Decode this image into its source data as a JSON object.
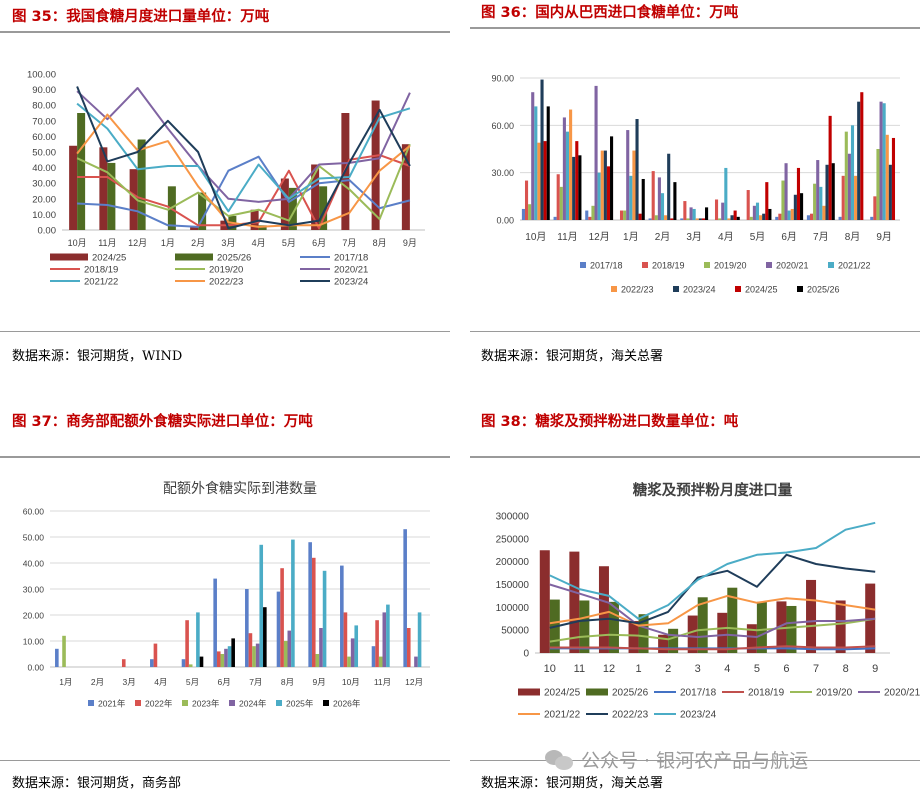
{
  "figures": {
    "fig35": {
      "title": "图 35：我国食糖月度进口量单位：万吨",
      "source": "数据来源：银河期货，WIND"
    },
    "fig36": {
      "title": "图 36：国内从巴西进口食糖单位：万吨",
      "source": "数据来源：银河期货，海关总署"
    },
    "fig37": {
      "title": "图 37：商务部配额外食糖实际进口单位：万吨",
      "source": "数据来源：银河期货，商务部"
    },
    "fig38": {
      "title": "图 38：糖浆及预拌粉进口数量单位：吨",
      "source": "数据来源：银河期货，海关总署"
    }
  },
  "watermark": {
    "text": "公众号 · 银河农产品与航运",
    "icon": "wechat-icon"
  },
  "chart_data": [
    {
      "id": "c35",
      "type": "bar",
      "categories": [
        "10月",
        "11月",
        "12月",
        "1月",
        "2月",
        "3月",
        "4月",
        "5月",
        "6月",
        "7月",
        "8月",
        "9月"
      ],
      "ylim": [
        0,
        100
      ],
      "yticks": [
        "0.00",
        "10.00",
        "20.00",
        "30.00",
        "40.00",
        "50.00",
        "60.00",
        "70.00",
        "80.00",
        "90.00",
        "100.00"
      ],
      "legend": "bottom",
      "series": [
        {
          "name": "2024/25",
          "kind": "bar",
          "color": "#8b2d2d",
          "values": [
            54,
            53,
            39,
            null,
            2,
            6,
            13,
            33,
            42,
            75,
            83,
            55
          ]
        },
        {
          "name": "2025/26",
          "kind": "bar",
          "color": "#4f6b22",
          "values": [
            75,
            43,
            58,
            28,
            24,
            9,
            3,
            27,
            28,
            null,
            null,
            null
          ]
        },
        {
          "name": "2017/18",
          "kind": "line",
          "color": "#5b7fc8",
          "values": [
            17,
            16,
            12,
            3,
            2,
            38,
            47,
            18,
            30,
            32,
            14,
            19
          ]
        },
        {
          "name": "2018/19",
          "kind": "line",
          "color": "#d9534f",
          "values": [
            34,
            34,
            21,
            15,
            3,
            3,
            5,
            38,
            1,
            45,
            48,
            41
          ]
        },
        {
          "name": "2019/20",
          "kind": "line",
          "color": "#9bbb59",
          "values": [
            46,
            37,
            19,
            13,
            24,
            9,
            13,
            6,
            41,
            26,
            7,
            55
          ]
        },
        {
          "name": "2020/21",
          "kind": "line",
          "color": "#8064a2",
          "values": [
            89,
            71,
            91,
            65,
            41,
            20,
            18,
            20,
            42,
            43,
            46,
            88
          ]
        },
        {
          "name": "2021/22",
          "kind": "line",
          "color": "#4bacc6",
          "values": [
            81,
            65,
            39,
            41,
            41,
            12,
            42,
            20,
            33,
            34,
            72,
            78
          ]
        },
        {
          "name": "2022/23",
          "kind": "line",
          "color": "#f79646",
          "values": [
            49,
            74,
            51,
            57,
            28,
            5,
            2,
            3,
            3,
            11,
            38,
            54
          ]
        },
        {
          "name": "2023/24",
          "kind": "line",
          "color": "#1f3d5a",
          "values": [
            92,
            44,
            50,
            70,
            50,
            1,
            6,
            3,
            6,
            43,
            77,
            41
          ]
        }
      ]
    },
    {
      "id": "c36",
      "type": "bar",
      "categories": [
        "10月",
        "11月",
        "12月",
        "1月",
        "2月",
        "3月",
        "4月",
        "5月",
        "6月",
        "7月",
        "8月",
        "9月"
      ],
      "ylim": [
        0,
        90
      ],
      "yticks": [
        "0.00",
        "30.00",
        "60.00",
        "90.00"
      ],
      "legend": "bottom",
      "series": [
        {
          "name": "2017/18",
          "color": "#5b7fc8",
          "values": [
            7,
            2,
            6,
            0,
            1,
            1,
            0,
            0,
            2,
            3,
            2,
            2
          ]
        },
        {
          "name": "2018/19",
          "color": "#d9534f",
          "values": [
            25,
            29,
            2,
            6,
            31,
            12,
            13,
            19,
            4,
            4,
            28,
            15
          ]
        },
        {
          "name": "2019/20",
          "color": "#9bbb59",
          "values": [
            10,
            21,
            9,
            6,
            3,
            1,
            1,
            2,
            25,
            23,
            56,
            45
          ]
        },
        {
          "name": "2020/21",
          "color": "#8064a2",
          "values": [
            81,
            65,
            85,
            57,
            27,
            8,
            11,
            9,
            36,
            38,
            42,
            75
          ]
        },
        {
          "name": "2021/22",
          "color": "#4bacc6",
          "values": [
            72,
            56,
            30,
            28,
            17,
            7,
            33,
            11,
            6,
            21,
            60,
            74
          ]
        },
        {
          "name": "2022/23",
          "color": "#f79646",
          "values": [
            49,
            70,
            44,
            44,
            3,
            1,
            1,
            3,
            7,
            9,
            28,
            54
          ]
        },
        {
          "name": "2023/24",
          "color": "#1f3d5a",
          "values": [
            89,
            40,
            44,
            64,
            42,
            1,
            3,
            4,
            16,
            35,
            75,
            35
          ]
        },
        {
          "name": "2024/25",
          "color": "#c00000",
          "values": [
            50,
            50,
            34,
            4,
            1,
            1,
            6,
            24,
            33,
            66,
            81,
            52
          ]
        },
        {
          "name": "2025/26",
          "color": "#000000",
          "values": [
            72,
            41,
            53,
            26,
            24,
            8,
            2,
            7,
            17,
            36,
            null,
            null
          ]
        }
      ]
    },
    {
      "id": "c37",
      "type": "bar",
      "title": "配额外食糖实际到港数量",
      "categories": [
        "1月",
        "2月",
        "3月",
        "4月",
        "5月",
        "6月",
        "7月",
        "8月",
        "9月",
        "10月",
        "11月",
        "12月"
      ],
      "ylim": [
        0,
        60
      ],
      "yticks": [
        "0.00",
        "10.00",
        "20.00",
        "30.00",
        "40.00",
        "50.00",
        "60.00"
      ],
      "legend": "bottom",
      "series": [
        {
          "name": "2021年",
          "color": "#5b7fc8",
          "values": [
            7,
            0,
            0,
            3,
            3,
            34,
            30,
            29,
            48,
            39,
            8,
            53
          ]
        },
        {
          "name": "2022年",
          "color": "#d9534f",
          "values": [
            0,
            0,
            3,
            9,
            18,
            6,
            13,
            38,
            42,
            21,
            18,
            15
          ]
        },
        {
          "name": "2023年",
          "color": "#9bbb59",
          "values": [
            12,
            0,
            0,
            0,
            1,
            5,
            8,
            10,
            5,
            4,
            4,
            0
          ]
        },
        {
          "name": "2024年",
          "color": "#8064a2",
          "values": [
            0,
            0,
            0,
            0,
            0,
            7,
            9,
            14,
            15,
            11,
            21,
            4
          ]
        },
        {
          "name": "2025年",
          "color": "#4bacc6",
          "values": [
            0,
            0,
            0,
            0,
            21,
            8,
            47,
            49,
            37,
            16,
            24,
            21
          ]
        },
        {
          "name": "2026年",
          "color": "#000000",
          "values": [
            0,
            0,
            0,
            0,
            4,
            11,
            23,
            null,
            null,
            null,
            null,
            null
          ]
        }
      ]
    },
    {
      "id": "c38",
      "type": "bar",
      "title": "糖浆及预拌粉月度进口量",
      "categories": [
        "10",
        "11",
        "12",
        "1",
        "2",
        "3",
        "4",
        "5",
        "6",
        "7",
        "8",
        "9"
      ],
      "ylim": [
        0,
        300000
      ],
      "yticks": [
        "0",
        "50000",
        "100000",
        "150000",
        "200000",
        "250000",
        "300000"
      ],
      "legend": "bottom",
      "series": [
        {
          "name": "2024/25",
          "kind": "bar",
          "color": "#8b2d2d",
          "values": [
            225000,
            222000,
            190000,
            70000,
            40000,
            82000,
            88000,
            63000,
            113000,
            160000,
            115000,
            152000
          ]
        },
        {
          "name": "2025/26",
          "kind": "bar",
          "color": "#4f6b22",
          "values": [
            117000,
            115000,
            112000,
            85000,
            53000,
            122000,
            143000,
            112000,
            103000,
            null,
            null,
            null
          ]
        },
        {
          "name": "2017/18",
          "kind": "line",
          "color": "#4472c4",
          "values": [
            10000,
            10000,
            10000,
            10000,
            10000,
            10000,
            10000,
            10000,
            10000,
            8000,
            8000,
            10000
          ]
        },
        {
          "name": "2018/19",
          "kind": "line",
          "color": "#c0504d",
          "values": [
            12000,
            12000,
            12000,
            10000,
            8000,
            8000,
            8000,
            12000,
            15000,
            12000,
            12000,
            15000
          ]
        },
        {
          "name": "2019/20",
          "kind": "line",
          "color": "#9bbb59",
          "values": [
            25000,
            35000,
            40000,
            38000,
            30000,
            50000,
            55000,
            50000,
            55000,
            60000,
            65000,
            75000
          ]
        },
        {
          "name": "2020/21",
          "kind": "line",
          "color": "#8064a2",
          "values": [
            150000,
            130000,
            110000,
            60000,
            40000,
            35000,
            40000,
            35000,
            65000,
            70000,
            70000,
            75000
          ]
        },
        {
          "name": "2021/22",
          "kind": "line",
          "color": "#f79646",
          "values": [
            65000,
            75000,
            90000,
            60000,
            65000,
            105000,
            125000,
            110000,
            120000,
            115000,
            105000,
            95000
          ]
        },
        {
          "name": "2022/23",
          "kind": "line",
          "color": "#1f3d5a",
          "values": [
            55000,
            70000,
            75000,
            65000,
            90000,
            165000,
            180000,
            145000,
            215000,
            195000,
            185000,
            178000
          ]
        },
        {
          "name": "2023/24",
          "kind": "line",
          "color": "#4bacc6",
          "values": [
            170000,
            140000,
            125000,
            75000,
            105000,
            160000,
            195000,
            215000,
            220000,
            230000,
            270000,
            285000
          ]
        }
      ]
    }
  ]
}
